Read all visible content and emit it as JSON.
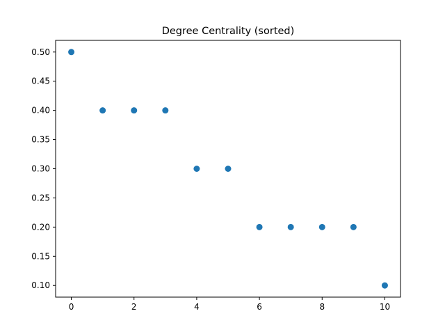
{
  "chart_data": {
    "type": "scatter",
    "title": "Degree Centrality (sorted)",
    "xlabel": "",
    "ylabel": "",
    "x": [
      0,
      1,
      2,
      3,
      4,
      5,
      6,
      7,
      8,
      9,
      10
    ],
    "y": [
      0.5,
      0.4,
      0.4,
      0.4,
      0.3,
      0.3,
      0.2,
      0.2,
      0.2,
      0.2,
      0.1
    ],
    "xlim": [
      -0.5,
      10.5
    ],
    "ylim": [
      0.08,
      0.52
    ],
    "xticks": [
      0,
      2,
      4,
      6,
      8,
      10
    ],
    "xtick_labels": [
      "0",
      "2",
      "4",
      "6",
      "8",
      "10"
    ],
    "yticks": [
      0.1,
      0.15,
      0.2,
      0.25,
      0.3,
      0.35,
      0.4,
      0.45,
      0.5
    ],
    "ytick_labels": [
      "0.10",
      "0.15",
      "0.20",
      "0.25",
      "0.30",
      "0.35",
      "0.40",
      "0.45",
      "0.50"
    ],
    "grid": false,
    "legend": false,
    "marker_color": "#1f77b4"
  }
}
